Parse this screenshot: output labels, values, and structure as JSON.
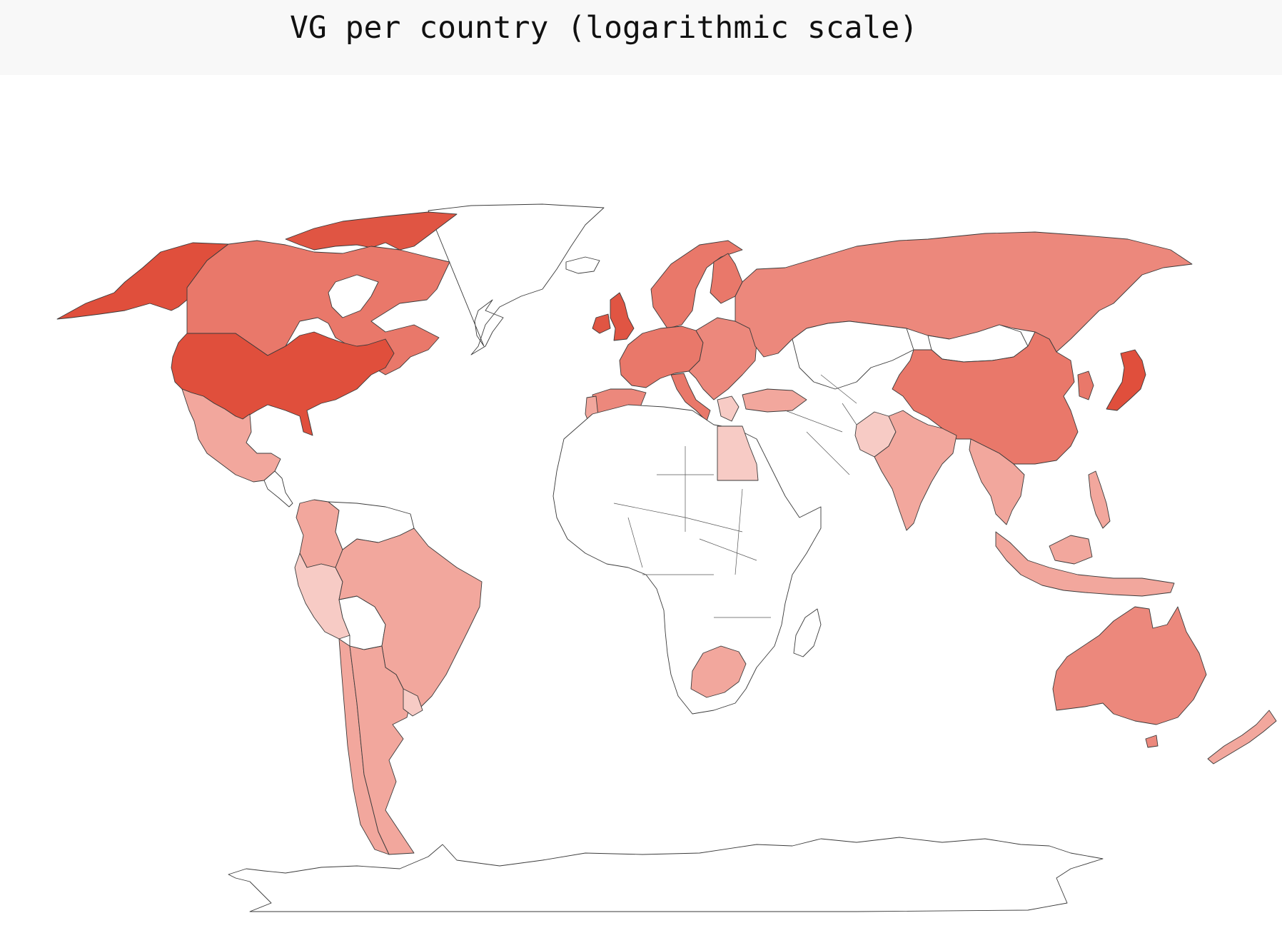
{
  "title": "VG per country (logarithmic scale)",
  "colors": {
    "none": "#ffffff",
    "scale": [
      "#f7cbc5",
      "#f2a79d",
      "#ec887c",
      "#e9786a",
      "#e05543",
      "#e04f3c"
    ]
  },
  "regions": [
    {
      "id": "alaska",
      "level": 5
    },
    {
      "id": "canada",
      "level": 3
    },
    {
      "id": "usa",
      "level": 5
    },
    {
      "id": "mexico",
      "level": 1
    },
    {
      "id": "greenland",
      "level": -1
    },
    {
      "id": "arctic-islands",
      "level": 4
    },
    {
      "id": "colombia",
      "level": 1
    },
    {
      "id": "venezuela",
      "level": -1
    },
    {
      "id": "brazil",
      "level": 1
    },
    {
      "id": "peru",
      "level": 0
    },
    {
      "id": "bolivia",
      "level": -1
    },
    {
      "id": "chile",
      "level": 1
    },
    {
      "id": "argentina",
      "level": 1
    },
    {
      "id": "uruguay",
      "level": 0
    },
    {
      "id": "iceland",
      "level": -1
    },
    {
      "id": "uk",
      "level": 4
    },
    {
      "id": "ireland",
      "level": 4
    },
    {
      "id": "scandinavia",
      "level": 3
    },
    {
      "id": "finland",
      "level": 3
    },
    {
      "id": "western-europe",
      "level": 3
    },
    {
      "id": "iberia",
      "level": 2
    },
    {
      "id": "portugal",
      "level": 1
    },
    {
      "id": "italy",
      "level": 3
    },
    {
      "id": "eastern-europe",
      "level": 2
    },
    {
      "id": "greece",
      "level": 0
    },
    {
      "id": "turkey",
      "level": 1
    },
    {
      "id": "russia",
      "level": 2
    },
    {
      "id": "kazakhstan",
      "level": -1
    },
    {
      "id": "mongolia",
      "level": -1
    },
    {
      "id": "china",
      "level": 3
    },
    {
      "id": "japan",
      "level": 5
    },
    {
      "id": "korea",
      "level": 3
    },
    {
      "id": "india",
      "level": 1
    },
    {
      "id": "pakistan",
      "level": 0
    },
    {
      "id": "southeast-asia",
      "level": 1
    },
    {
      "id": "philippines",
      "level": 1
    },
    {
      "id": "indonesia",
      "level": 1
    },
    {
      "id": "australia",
      "level": 2
    },
    {
      "id": "new-zealand",
      "level": 1
    },
    {
      "id": "africa",
      "level": -1
    },
    {
      "id": "egypt",
      "level": 0
    },
    {
      "id": "south-africa",
      "level": 1
    },
    {
      "id": "madagascar",
      "level": -1
    },
    {
      "id": "antarctica",
      "level": -1
    }
  ]
}
